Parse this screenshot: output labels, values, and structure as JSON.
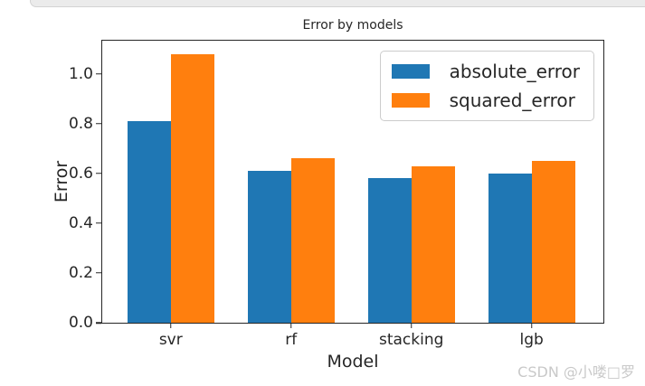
{
  "chart_data": {
    "type": "bar",
    "title": "Error by models",
    "xlabel": "Model",
    "ylabel": "Error",
    "categories": [
      "svr",
      "rf",
      "stacking",
      "lgb"
    ],
    "series": [
      {
        "name": "absolute_error",
        "color": "#1f77b4",
        "values": [
          0.81,
          0.61,
          0.58,
          0.6
        ]
      },
      {
        "name": "squared_error",
        "color": "#ff7f0e",
        "values": [
          1.08,
          0.66,
          0.63,
          0.65
        ]
      }
    ],
    "ylim": [
      0,
      1.133
    ],
    "yticks": [
      0.0,
      0.2,
      0.4,
      0.6,
      0.8,
      1.0
    ],
    "grid": false,
    "legend_position": "upper right",
    "bar_layout": {
      "first_center_frac": 0.1368,
      "spacing_frac": 0.24,
      "bar_width_frac": 0.0865
    }
  },
  "watermark": {
    "text": "CSDN @小喽□罗",
    "color": "#c9c9c9"
  },
  "colors": {
    "axis": "#262626",
    "text": "#262626",
    "legend_border": "#cccccc",
    "panel_edge_bg": "#ebebeb",
    "panel_edge_border": "#d3d3d3",
    "background": "#ffffff"
  }
}
